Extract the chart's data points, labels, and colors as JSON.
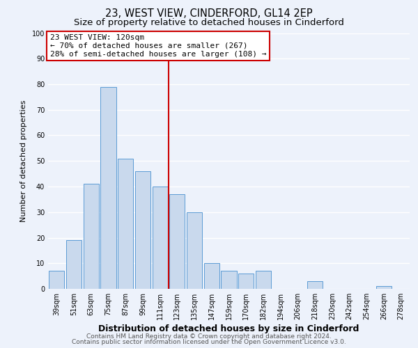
{
  "title": "23, WEST VIEW, CINDERFORD, GL14 2EP",
  "subtitle": "Size of property relative to detached houses in Cinderford",
  "xlabel": "Distribution of detached houses by size in Cinderford",
  "ylabel": "Number of detached properties",
  "bar_labels": [
    "39sqm",
    "51sqm",
    "63sqm",
    "75sqm",
    "87sqm",
    "99sqm",
    "111sqm",
    "123sqm",
    "135sqm",
    "147sqm",
    "159sqm",
    "170sqm",
    "182sqm",
    "194sqm",
    "206sqm",
    "218sqm",
    "230sqm",
    "242sqm",
    "254sqm",
    "266sqm",
    "278sqm"
  ],
  "bar_heights": [
    7,
    19,
    41,
    79,
    51,
    46,
    40,
    37,
    30,
    10,
    7,
    6,
    7,
    0,
    0,
    3,
    0,
    0,
    0,
    1,
    0
  ],
  "bar_color": "#c9d9ed",
  "bar_edge_color": "#5b9bd5",
  "vline_x_index": 7,
  "vline_color": "#cc0000",
  "annotation_title": "23 WEST VIEW: 120sqm",
  "annotation_line1": "← 70% of detached houses are smaller (267)",
  "annotation_line2": "28% of semi-detached houses are larger (108) →",
  "annotation_box_color": "#ffffff",
  "annotation_box_edge": "#cc0000",
  "ylim": [
    0,
    100
  ],
  "yticks": [
    0,
    10,
    20,
    30,
    40,
    50,
    60,
    70,
    80,
    90,
    100
  ],
  "background_color": "#edf2fb",
  "grid_color": "#ffffff",
  "footer1": "Contains HM Land Registry data © Crown copyright and database right 2024.",
  "footer2": "Contains public sector information licensed under the Open Government Licence v3.0.",
  "title_fontsize": 10.5,
  "subtitle_fontsize": 9.5,
  "xlabel_fontsize": 9,
  "ylabel_fontsize": 8,
  "tick_fontsize": 7,
  "annotation_fontsize": 8,
  "footer_fontsize": 6.5
}
